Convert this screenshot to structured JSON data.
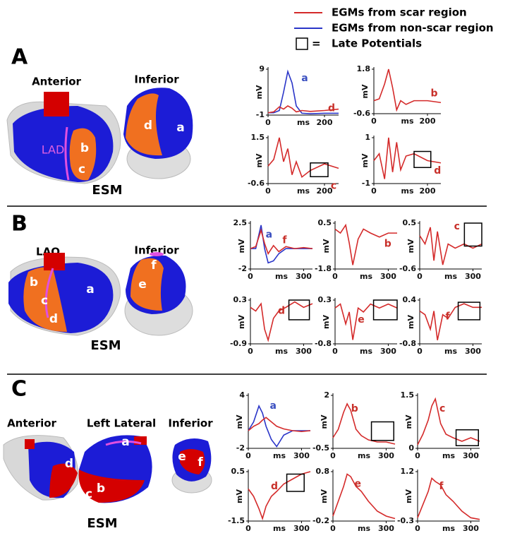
{
  "legend": {
    "items": [
      {
        "name": "EGMs from scar region",
        "color": "#d42a2a"
      },
      {
        "name": "EGMs from non-scar region",
        "color": "#2a35c8"
      }
    ],
    "box_symbol": "=",
    "box_label": "Late Potentials"
  },
  "panels": [
    {
      "label": "A",
      "views": [
        "Anterior",
        "Inferior"
      ],
      "map": "ESM",
      "sites": [
        "LAD",
        "b",
        "c",
        "d",
        "a"
      ]
    },
    {
      "label": "B",
      "views": [
        "LAO",
        "Inferior"
      ],
      "map": "ESM",
      "sites": [
        "b",
        "c",
        "d",
        "a",
        "f",
        "e"
      ]
    },
    {
      "label": "C",
      "views": [
        "Anterior",
        "Left Lateral",
        "Inferior"
      ],
      "map": "ESM",
      "sites": [
        "d",
        "a",
        "c",
        "b",
        "e",
        "f"
      ]
    }
  ],
  "chart_data": [
    {
      "type": "line",
      "ylabel": "mV",
      "xlabel": "ms",
      "x": [
        0,
        20,
        40,
        55,
        70,
        85,
        100,
        120,
        150,
        200,
        250
      ],
      "xlim": [
        0,
        250
      ],
      "ylim": [
        -1,
        9
      ],
      "xticks": [
        0,
        200
      ],
      "yticks": [
        -1,
        9
      ],
      "late_potentials": false,
      "annotations": [
        {
          "text": "a",
          "color": "#3a4fc0"
        },
        {
          "text": "d",
          "color": "#c8302a"
        }
      ],
      "series": [
        {
          "color": "#2a35c8",
          "values": [
            -0.5,
            -0.5,
            0,
            4,
            8.5,
            6,
            1,
            -0.6,
            -0.7,
            -0.6,
            -0.6
          ]
        },
        {
          "color": "#d42a2a",
          "values": [
            -0.5,
            -0.3,
            0.8,
            0.3,
            1,
            0.5,
            -0.3,
            0,
            -0.2,
            0,
            0.3
          ]
        }
      ]
    },
    {
      "type": "line",
      "ylabel": "mV",
      "xlabel": "ms",
      "x": [
        0,
        20,
        40,
        55,
        70,
        85,
        100,
        120,
        150,
        200,
        250
      ],
      "xlim": [
        0,
        250
      ],
      "ylim": [
        -0.6,
        1.8
      ],
      "xticks": [
        0,
        200
      ],
      "yticks": [
        -0.6,
        1.8
      ],
      "late_potentials": false,
      "annotations": [
        {
          "text": "b",
          "color": "#c8302a"
        }
      ],
      "series": [
        {
          "color": "#d42a2a",
          "values": [
            0.1,
            0.2,
            1.0,
            1.8,
            0.8,
            -0.4,
            0.1,
            -0.1,
            0.1,
            0.1,
            0
          ]
        }
      ]
    },
    {
      "type": "line",
      "ylabel": "mV",
      "xlabel": "ms",
      "x": [
        0,
        20,
        40,
        55,
        70,
        85,
        100,
        120,
        150,
        200,
        250
      ],
      "xlim": [
        0,
        250
      ],
      "ylim": [
        -0.6,
        1.5
      ],
      "xticks": [
        0,
        200
      ],
      "yticks": [
        -0.6,
        1.5
      ],
      "late_potentials": true,
      "annotations": [
        {
          "text": "c",
          "color": "#c8302a"
        }
      ],
      "series": [
        {
          "color": "#d42a2a",
          "values": [
            0.2,
            0.5,
            1.5,
            0.4,
            1.0,
            -0.2,
            0.4,
            -0.3,
            0.0,
            0.3,
            0.1
          ]
        }
      ]
    },
    {
      "type": "line",
      "ylabel": "mV",
      "xlabel": "ms",
      "x": [
        0,
        20,
        40,
        55,
        70,
        85,
        100,
        120,
        150,
        200,
        250
      ],
      "xlim": [
        0,
        250
      ],
      "ylim": [
        -1,
        1
      ],
      "xticks": [
        0,
        200
      ],
      "yticks": [
        -1,
        1
      ],
      "late_potentials": true,
      "annotations": [
        {
          "text": "d",
          "color": "#c8302a"
        }
      ],
      "series": [
        {
          "color": "#d42a2a",
          "values": [
            0,
            0.3,
            -0.8,
            1,
            -0.5,
            0.8,
            -0.4,
            0.2,
            0.3,
            0,
            -0.1
          ]
        }
      ]
    },
    {
      "type": "line",
      "ylabel": "mV",
      "xlabel": "ms",
      "x": [
        0,
        30,
        60,
        80,
        100,
        130,
        160,
        200,
        250,
        300,
        350
      ],
      "xlim": [
        0,
        350
      ],
      "ylim": [
        -2,
        2.5
      ],
      "xticks": [
        0,
        300
      ],
      "yticks": [
        -2,
        2.5
      ],
      "late_potentials": false,
      "annotations": [
        {
          "text": "a",
          "color": "#3a4fc0"
        },
        {
          "text": "f",
          "color": "#c8302a"
        }
      ],
      "series": [
        {
          "color": "#2a35c8",
          "values": [
            0,
            0,
            2.3,
            0,
            -1.4,
            -1.2,
            -0.5,
            0,
            0,
            0,
            0
          ]
        },
        {
          "color": "#d42a2a",
          "values": [
            0,
            0.2,
            1.8,
            0.5,
            -0.5,
            0.3,
            -0.3,
            0.2,
            0,
            0.1,
            0
          ]
        }
      ]
    },
    {
      "type": "line",
      "ylabel": "mV",
      "xlabel": "ms",
      "x": [
        0,
        30,
        60,
        80,
        100,
        130,
        160,
        200,
        250,
        300,
        350
      ],
      "xlim": [
        0,
        350
      ],
      "ylim": [
        -1.8,
        0.5
      ],
      "xticks": [
        0,
        300
      ],
      "yticks": [
        -1.8,
        0.5
      ],
      "late_potentials": false,
      "annotations": [
        {
          "text": "b",
          "color": "#c8302a"
        }
      ],
      "series": [
        {
          "color": "#d42a2a",
          "values": [
            0.2,
            0,
            0.4,
            -0.5,
            -1.6,
            -0.3,
            0.2,
            0,
            -0.2,
            0,
            0
          ]
        }
      ]
    },
    {
      "type": "line",
      "ylabel": "mV",
      "xlabel": "ms",
      "x": [
        0,
        30,
        60,
        80,
        100,
        130,
        160,
        200,
        250,
        300,
        350
      ],
      "xlim": [
        0,
        350
      ],
      "ylim": [
        -0.6,
        0.5
      ],
      "xticks": [
        0,
        300
      ],
      "yticks": [
        -0.6,
        0.5
      ],
      "late_potentials": true,
      "annotations": [
        {
          "text": "c",
          "color": "#c8302a"
        }
      ],
      "series": [
        {
          "color": "#d42a2a",
          "values": [
            0.2,
            0,
            0.4,
            -0.4,
            0.3,
            -0.5,
            0,
            -0.1,
            0,
            -0.1,
            0
          ]
        }
      ]
    },
    {
      "type": "line",
      "ylabel": "mV",
      "xlabel": "ms",
      "x": [
        0,
        30,
        60,
        80,
        100,
        130,
        160,
        200,
        250,
        300,
        350
      ],
      "xlim": [
        0,
        350
      ],
      "ylim": [
        -0.9,
        0.3
      ],
      "xticks": [
        0,
        300
      ],
      "yticks": [
        -0.9,
        0.3
      ],
      "late_potentials": true,
      "annotations": [
        {
          "text": "d",
          "color": "#c8302a"
        }
      ],
      "series": [
        {
          "color": "#d42a2a",
          "values": [
            0.1,
            0,
            0.2,
            -0.5,
            -0.8,
            -0.2,
            0,
            0.1,
            0.25,
            0.1,
            0.2
          ]
        }
      ]
    },
    {
      "type": "line",
      "ylabel": "mV",
      "xlabel": "ms",
      "x": [
        0,
        30,
        60,
        80,
        100,
        130,
        160,
        200,
        250,
        300,
        350
      ],
      "xlim": [
        0,
        350
      ],
      "ylim": [
        -0.8,
        0.3
      ],
      "xticks": [
        0,
        300
      ],
      "yticks": [
        -0.8,
        0.3
      ],
      "late_potentials": true,
      "annotations": [
        {
          "text": "e",
          "color": "#c8302a"
        }
      ],
      "series": [
        {
          "color": "#d42a2a",
          "values": [
            0.1,
            0.2,
            -0.3,
            0,
            -0.7,
            0.1,
            0,
            0.2,
            0.1,
            0.2,
            0.1
          ]
        }
      ]
    },
    {
      "type": "line",
      "ylabel": "mV",
      "xlabel": "ms",
      "x": [
        0,
        30,
        60,
        80,
        100,
        130,
        160,
        200,
        250,
        300,
        350
      ],
      "xlim": [
        0,
        350
      ],
      "ylim": [
        -0.8,
        0.4
      ],
      "xticks": [
        0,
        300
      ],
      "yticks": [
        -0.8,
        0.4
      ],
      "late_potentials": true,
      "annotations": [
        {
          "text": "f",
          "color": "#c8302a"
        }
      ],
      "series": [
        {
          "color": "#d42a2a",
          "values": [
            0.1,
            0,
            -0.4,
            0.1,
            -0.7,
            0,
            -0.1,
            0.2,
            0.3,
            0.2,
            0.2
          ]
        }
      ]
    },
    {
      "type": "line",
      "ylabel": "mV",
      "xlabel": "ms",
      "x": [
        0,
        30,
        60,
        80,
        100,
        130,
        160,
        200,
        250,
        300,
        350
      ],
      "xlim": [
        0,
        350
      ],
      "ylim": [
        -2,
        4
      ],
      "xticks": [
        0,
        300
      ],
      "yticks": [
        -2,
        4
      ],
      "late_potentials": false,
      "annotations": [
        {
          "text": "a",
          "color": "#3a4fc0"
        }
      ],
      "series": [
        {
          "color": "#2a35c8",
          "values": [
            0,
            1,
            2.8,
            2,
            0.5,
            -1,
            -1.8,
            -0.5,
            0,
            0,
            0
          ]
        },
        {
          "color": "#d42a2a",
          "values": [
            0,
            0.5,
            0.8,
            1.2,
            1.5,
            1,
            0.5,
            0.2,
            0,
            -0.1,
            0
          ]
        }
      ]
    },
    {
      "type": "line",
      "ylabel": "mV",
      "xlabel": "ms",
      "x": [
        0,
        30,
        60,
        80,
        100,
        130,
        160,
        200,
        250,
        300,
        350
      ],
      "xlim": [
        0,
        350
      ],
      "ylim": [
        -0.5,
        2
      ],
      "xticks": [
        0,
        300
      ],
      "yticks": [
        -0.5,
        2
      ],
      "late_potentials": true,
      "annotations": [
        {
          "text": "b",
          "color": "#c8302a"
        }
      ],
      "series": [
        {
          "color": "#d42a2a",
          "values": [
            0,
            0.4,
            1.2,
            1.6,
            1.3,
            0.4,
            0.1,
            -0.1,
            -0.2,
            -0.2,
            -0.3
          ]
        }
      ]
    },
    {
      "type": "line",
      "ylabel": "mV",
      "xlabel": "ms",
      "x": [
        0,
        30,
        60,
        80,
        100,
        130,
        160,
        200,
        250,
        300,
        350
      ],
      "xlim": [
        0,
        350
      ],
      "ylim": [
        0,
        1.5
      ],
      "xticks": [
        0,
        300
      ],
      "yticks": [
        0,
        1.5
      ],
      "late_potentials": true,
      "annotations": [
        {
          "text": "c",
          "color": "#c8302a"
        }
      ],
      "series": [
        {
          "color": "#d42a2a",
          "values": [
            0.1,
            0.4,
            0.8,
            1.2,
            1.4,
            0.7,
            0.4,
            0.3,
            0.2,
            0.3,
            0.2
          ]
        }
      ]
    },
    {
      "type": "line",
      "ylabel": "mV",
      "xlabel": "ms",
      "x": [
        0,
        30,
        60,
        80,
        100,
        130,
        160,
        200,
        250,
        300,
        350
      ],
      "xlim": [
        0,
        350
      ],
      "ylim": [
        -1.5,
        0.5
      ],
      "xticks": [
        0,
        300
      ],
      "yticks": [
        -1.5,
        0.5
      ],
      "late_potentials": true,
      "annotations": [
        {
          "text": "d",
          "color": "#c8302a"
        }
      ],
      "series": [
        {
          "color": "#d42a2a",
          "values": [
            -0.2,
            -0.5,
            -1.0,
            -1.4,
            -0.9,
            -0.5,
            -0.3,
            0,
            0.2,
            0.4,
            0.5
          ]
        }
      ]
    },
    {
      "type": "line",
      "ylabel": "mV",
      "xlabel": "ms",
      "x": [
        0,
        30,
        60,
        80,
        100,
        130,
        160,
        200,
        250,
        300,
        350
      ],
      "xlim": [
        0,
        350
      ],
      "ylim": [
        -0.2,
        0.8
      ],
      "xticks": [
        0,
        300
      ],
      "yticks": [
        -0.2,
        0.8
      ],
      "late_potentials": false,
      "annotations": [
        {
          "text": "e",
          "color": "#c8302a"
        }
      ],
      "series": [
        {
          "color": "#d42a2a",
          "values": [
            -0.1,
            0.2,
            0.5,
            0.75,
            0.7,
            0.5,
            0.4,
            0.2,
            0,
            -0.1,
            -0.15
          ]
        }
      ]
    },
    {
      "type": "line",
      "ylabel": "mV",
      "xlabel": "ms",
      "x": [
        0,
        30,
        60,
        80,
        100,
        130,
        160,
        200,
        250,
        300,
        350
      ],
      "xlim": [
        0,
        350
      ],
      "ylim": [
        -0.3,
        1.2
      ],
      "xticks": [
        0,
        300
      ],
      "yticks": [
        -0.3,
        1.2
      ],
      "late_potentials": false,
      "annotations": [
        {
          "text": "f",
          "color": "#c8302a"
        }
      ],
      "series": [
        {
          "color": "#d42a2a",
          "values": [
            -0.2,
            0.2,
            0.6,
            1.0,
            0.9,
            0.8,
            0.5,
            0.3,
            0,
            -0.2,
            -0.25
          ]
        }
      ]
    }
  ]
}
